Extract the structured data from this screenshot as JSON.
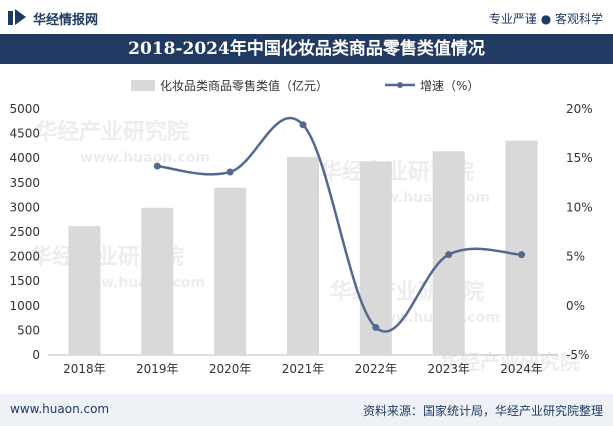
{
  "header": {
    "brand": "华经情报网",
    "slogan": "专业严谨 ● 客观科学"
  },
  "title": "2018-2024年中国化妆品类商品零售类值情况",
  "footer": {
    "website": "www.huaon.com",
    "source": "资料来源：国家统计局，华经产业研究院整理"
  },
  "watermark": {
    "text": "华经产业研究院",
    "url": "www.huaon.com"
  },
  "colors": {
    "bar": "#d9d9d9",
    "line": "#54698f",
    "title_bg": "#213a62",
    "text": "#333333"
  },
  "chart_data": {
    "type": "bar",
    "title": "2018-2024年中国化妆品类商品零售类值情况",
    "categories": [
      "2018年",
      "2019年",
      "2020年",
      "2021年",
      "2022年",
      "2023年",
      "2024年"
    ],
    "series": [
      {
        "name": "化妆品类商品零售类值（亿元）",
        "type": "bar",
        "axis": "left",
        "values": [
          2619,
          2992,
          3400,
          4026,
          3936,
          4142,
          4357
        ]
      },
      {
        "name": "增速（%）",
        "type": "line",
        "axis": "right",
        "values": [
          null,
          14.2,
          13.6,
          18.4,
          -2.2,
          5.2,
          5.2
        ]
      }
    ],
    "y_left": {
      "min": 0,
      "max": 5000,
      "ticks": [
        "0",
        "500",
        "1000",
        "1500",
        "2000",
        "2500",
        "3000",
        "3500",
        "4000",
        "4500",
        "5000"
      ]
    },
    "y_right": {
      "min": -5,
      "max": 20,
      "ticks": [
        "-5%",
        "0%",
        "5%",
        "10%",
        "15%",
        "20%"
      ]
    },
    "legend": {
      "bar": "化妆品类商品零售类值（亿元）",
      "line": "增速（%）"
    }
  }
}
